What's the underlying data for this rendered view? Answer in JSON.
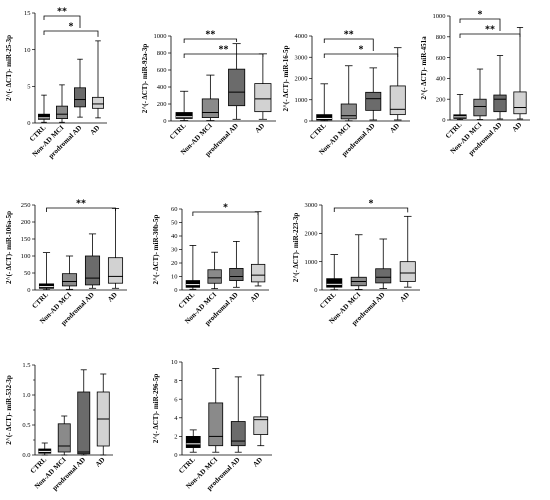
{
  "categories": [
    "CTRL",
    "Non-AD MCI",
    "prodromal AD",
    "AD"
  ],
  "group_colors": [
    "#000000",
    "#8a8a8a",
    "#6b6b6b",
    "#d2d2d2"
  ],
  "chart_data": [
    {
      "type": "boxplot",
      "ylabel": "2^(- ΔCT)- miR-25-3p",
      "ylim": [
        0,
        15
      ],
      "yticks": [
        0,
        5,
        10,
        15
      ],
      "categories": [
        "CTRL",
        "Non-AD MCI",
        "prodromal AD",
        "AD"
      ],
      "series": [
        {
          "min": 0.1,
          "q1": 0.5,
          "median": 0.7,
          "q3": 1.2,
          "max": 3.8
        },
        {
          "min": 0.1,
          "q1": 0.6,
          "median": 1.2,
          "q3": 2.3,
          "max": 5.2
        },
        {
          "min": 0.8,
          "q1": 2.2,
          "median": 3.2,
          "q3": 4.8,
          "max": 8.7
        },
        {
          "min": 0.7,
          "q1": 2.0,
          "median": 2.6,
          "q3": 3.5,
          "max": 11.2
        }
      ],
      "significance": [
        {
          "from": 0,
          "to": 2,
          "label": "**"
        },
        {
          "from": 0,
          "to": 3,
          "label": "*"
        }
      ]
    },
    {
      "type": "boxplot",
      "ylabel": "2^(- ΔCT)- miR-92a-3p",
      "ylim": [
        0,
        1000
      ],
      "yticks": [
        0,
        200,
        400,
        600,
        800,
        1000
      ],
      "categories": [
        "CTRL",
        "Non-AD MCI",
        "prodromal AD",
        "AD"
      ],
      "series": [
        {
          "min": 5,
          "q1": 30,
          "median": 50,
          "q3": 100,
          "max": 350
        },
        {
          "min": 5,
          "q1": 40,
          "median": 100,
          "q3": 260,
          "max": 540
        },
        {
          "min": 20,
          "q1": 180,
          "median": 340,
          "q3": 610,
          "max": 910
        },
        {
          "min": 20,
          "q1": 110,
          "median": 260,
          "q3": 440,
          "max": 790
        }
      ],
      "significance": [
        {
          "from": 0,
          "to": 2,
          "label": "**"
        },
        {
          "from": 0,
          "to": 3,
          "label": "**"
        }
      ]
    },
    {
      "type": "boxplot",
      "ylabel": "2^(- ΔCT)- miR-16-5p",
      "ylim": [
        0,
        4000
      ],
      "yticks": [
        0,
        1000,
        2000,
        3000,
        4000
      ],
      "categories": [
        "CTRL",
        "Non-AD MCI",
        "prodromal AD",
        "AD"
      ],
      "series": [
        {
          "min": 10,
          "q1": 50,
          "median": 120,
          "q3": 300,
          "max": 1750
        },
        {
          "min": 10,
          "q1": 100,
          "median": 250,
          "q3": 800,
          "max": 2600
        },
        {
          "min": 50,
          "q1": 500,
          "median": 1050,
          "q3": 1350,
          "max": 2500
        },
        {
          "min": 50,
          "q1": 300,
          "median": 550,
          "q3": 1650,
          "max": 3450
        }
      ],
      "significance": [
        {
          "from": 0,
          "to": 2,
          "label": "**"
        },
        {
          "from": 0,
          "to": 3,
          "label": "*"
        }
      ]
    },
    {
      "type": "boxplot",
      "ylabel": "2^(- ΔCT)- miR-451a",
      "ylim": [
        0,
        1000
      ],
      "yticks": [
        0,
        200,
        400,
        600,
        800,
        1000
      ],
      "categories": [
        "CTRL",
        "Non-AD MCI",
        "prodromal AD",
        "AD"
      ],
      "series": [
        {
          "min": 5,
          "q1": 15,
          "median": 30,
          "q3": 50,
          "max": 245
        },
        {
          "min": 5,
          "q1": 40,
          "median": 130,
          "q3": 200,
          "max": 490
        },
        {
          "min": 10,
          "q1": 80,
          "median": 200,
          "q3": 240,
          "max": 620
        },
        {
          "min": 10,
          "q1": 60,
          "median": 120,
          "q3": 270,
          "max": 890
        }
      ],
      "significance": [
        {
          "from": 0,
          "to": 2,
          "label": "*"
        },
        {
          "from": 0,
          "to": 3,
          "label": "**"
        }
      ]
    },
    {
      "type": "boxplot",
      "ylabel": "2^(- ΔCT)- miR-106a-5p",
      "ylim": [
        0,
        250
      ],
      "yticks": [
        0,
        50,
        100,
        150,
        200,
        250
      ],
      "categories": [
        "CTRL",
        "Non-AD MCI",
        "prodromal AD",
        "AD"
      ],
      "series": [
        {
          "min": 1,
          "q1": 5,
          "median": 10,
          "q3": 18,
          "max": 110
        },
        {
          "min": 2,
          "q1": 12,
          "median": 25,
          "q3": 48,
          "max": 100
        },
        {
          "min": 5,
          "q1": 15,
          "median": 35,
          "q3": 100,
          "max": 165
        },
        {
          "min": 5,
          "q1": 20,
          "median": 40,
          "q3": 95,
          "max": 240
        }
      ],
      "significance": [
        {
          "from": 0,
          "to": 3,
          "label": "**"
        }
      ]
    },
    {
      "type": "boxplot",
      "ylabel": "2^(- ΔCT)- miR-30b-5p",
      "ylim": [
        0,
        60
      ],
      "yticks": [
        0,
        10,
        20,
        30,
        40,
        50,
        60
      ],
      "categories": [
        "CTRL",
        "Non-AD MCI",
        "prodromal AD",
        "AD"
      ],
      "series": [
        {
          "min": 0.5,
          "q1": 2,
          "median": 4,
          "q3": 7,
          "max": 33
        },
        {
          "min": 1,
          "q1": 5,
          "median": 9,
          "q3": 15,
          "max": 28
        },
        {
          "min": 2,
          "q1": 7,
          "median": 10,
          "q3": 16,
          "max": 36
        },
        {
          "min": 3,
          "q1": 6,
          "median": 11,
          "q3": 19,
          "max": 58
        }
      ],
      "significance": [
        {
          "from": 0,
          "to": 3,
          "label": "*"
        }
      ]
    },
    {
      "type": "boxplot",
      "ylabel": "2^(- ΔCT)- miR-223-3p",
      "ylim": [
        0,
        3000
      ],
      "yticks": [
        0,
        1000,
        2000,
        3000
      ],
      "categories": [
        "CTRL",
        "Non-AD MCI",
        "prodromal AD",
        "AD"
      ],
      "series": [
        {
          "min": 10,
          "q1": 100,
          "median": 200,
          "q3": 400,
          "max": 1250
        },
        {
          "min": 20,
          "q1": 150,
          "median": 300,
          "q3": 450,
          "max": 1950
        },
        {
          "min": 50,
          "q1": 250,
          "median": 450,
          "q3": 750,
          "max": 1800
        },
        {
          "min": 100,
          "q1": 300,
          "median": 600,
          "q3": 1000,
          "max": 2600
        }
      ],
      "significance": [
        {
          "from": 0,
          "to": 3,
          "label": "*"
        }
      ]
    },
    {
      "type": "boxplot",
      "ylabel": "2^(- ΔCT)- miR-532-3p",
      "ylim": [
        0,
        1.5
      ],
      "yticks": [
        0,
        0.5,
        1.0,
        1.5
      ],
      "ytick_labels": [
        "0.0",
        "0.5",
        "1.0",
        "1.5"
      ],
      "minor_yticks": [
        0.25,
        0.75,
        1.25
      ],
      "categories": [
        "CTRL",
        "Non-AD MCI",
        "prodromal AD",
        "AD"
      ],
      "series": [
        {
          "min": 0.0,
          "q1": 0.03,
          "median": 0.06,
          "q3": 0.1,
          "max": 0.2
        },
        {
          "min": 0.0,
          "q1": 0.05,
          "median": 0.15,
          "q3": 0.52,
          "max": 0.65
        },
        {
          "min": 0.0,
          "q1": 0.02,
          "median": 0.05,
          "q3": 1.05,
          "max": 1.42
        },
        {
          "min": 0.0,
          "q1": 0.15,
          "median": 0.6,
          "q3": 1.05,
          "max": 1.35
        }
      ],
      "significance": []
    },
    {
      "type": "boxplot",
      "ylabel": "2^(- ΔCT)- miR-296-5p",
      "ylim": [
        0,
        10
      ],
      "yticks": [
        0,
        2,
        4,
        6,
        8,
        10
      ],
      "categories": [
        "CTRL",
        "Non-AD MCI",
        "prodromal AD",
        "AD"
      ],
      "series": [
        {
          "min": 0.3,
          "q1": 0.8,
          "median": 1.2,
          "q3": 2.0,
          "max": 2.7
        },
        {
          "min": 0.3,
          "q1": 1.0,
          "median": 2.0,
          "q3": 5.6,
          "max": 9.3
        },
        {
          "min": 0.3,
          "q1": 1.0,
          "median": 1.5,
          "q3": 3.6,
          "max": 8.4
        },
        {
          "min": 1.0,
          "q1": 2.2,
          "median": 3.8,
          "q3": 4.1,
          "max": 8.6
        }
      ],
      "significance": []
    }
  ]
}
